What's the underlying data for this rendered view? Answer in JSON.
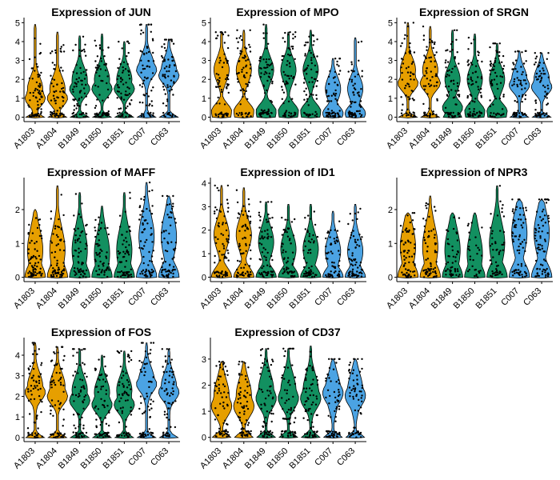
{
  "palette": {
    "A": "#E69F00",
    "B": "#129060",
    "C": "#4BA3E3"
  },
  "chart_data": [
    {
      "type": "violin",
      "title": "Expression of JUN",
      "categories": [
        "A1803",
        "A1804",
        "B1849",
        "B1850",
        "B1851",
        "C007",
        "C063"
      ],
      "yticks": [
        0,
        1,
        2,
        3,
        4,
        5
      ],
      "ylim": [
        -0.15,
        5.1
      ],
      "series": [
        {
          "max": 4.9,
          "medianish": 1.0,
          "bulk": 1.5,
          "n": 70
        },
        {
          "max": 4.5,
          "medianish": 1.0,
          "bulk": 1.5,
          "n": 70
        },
        {
          "max": 4.3,
          "medianish": 1.5,
          "bulk": 2.0,
          "n": 70
        },
        {
          "max": 4.4,
          "medianish": 1.5,
          "bulk": 2.0,
          "n": 70
        },
        {
          "max": 4.0,
          "medianish": 1.5,
          "bulk": 2.0,
          "n": 70
        },
        {
          "max": 4.9,
          "medianish": 2.5,
          "bulk": 2.7,
          "n": 70
        },
        {
          "max": 4.1,
          "medianish": 2.2,
          "bulk": 2.5,
          "n": 70
        }
      ]
    },
    {
      "type": "violin",
      "title": "Expression of MPO",
      "categories": [
        "A1803",
        "A1804",
        "B1849",
        "B1850",
        "B1851",
        "C007",
        "C063"
      ],
      "yticks": [
        0,
        1,
        2,
        3,
        4,
        5
      ],
      "ylim": [
        -0.15,
        5.1
      ],
      "series": [
        {
          "max": 4.5,
          "medianish": 0.3,
          "bulk": 2.5,
          "n": 70
        },
        {
          "max": 4.6,
          "medianish": 0.3,
          "bulk": 2.5,
          "n": 70
        },
        {
          "max": 4.9,
          "medianish": 0.3,
          "bulk": 2.5,
          "n": 70
        },
        {
          "max": 4.5,
          "medianish": 0.3,
          "bulk": 2.5,
          "n": 70
        },
        {
          "max": 4.6,
          "medianish": 0.3,
          "bulk": 2.5,
          "n": 70
        },
        {
          "max": 3.1,
          "medianish": 0.2,
          "bulk": 1.5,
          "n": 70
        },
        {
          "max": 4.2,
          "medianish": 0.2,
          "bulk": 1.5,
          "n": 70
        }
      ]
    },
    {
      "type": "violin",
      "title": "Expression of SRGN",
      "categories": [
        "A1803",
        "A1804",
        "B1849",
        "B1850",
        "B1851",
        "C007",
        "C063"
      ],
      "yticks": [
        0,
        1,
        2,
        3,
        4,
        5
      ],
      "ylim": [
        -0.15,
        5.1
      ],
      "series": [
        {
          "max": 5.0,
          "medianish": 1.8,
          "bulk": 2.5,
          "n": 70
        },
        {
          "max": 4.8,
          "medianish": 1.8,
          "bulk": 2.5,
          "n": 70
        },
        {
          "max": 4.6,
          "medianish": 0.5,
          "bulk": 2.0,
          "n": 70
        },
        {
          "max": 4.4,
          "medianish": 0.3,
          "bulk": 2.0,
          "n": 70
        },
        {
          "max": 3.9,
          "medianish": 0.3,
          "bulk": 2.0,
          "n": 70
        },
        {
          "max": 3.5,
          "medianish": 1.7,
          "bulk": 2.0,
          "n": 70
        },
        {
          "max": 3.4,
          "medianish": 1.6,
          "bulk": 2.0,
          "n": 70
        }
      ]
    },
    {
      "type": "violin",
      "title": "Expression of MAFF",
      "categories": [
        "A1803",
        "A1804",
        "B1849",
        "B1850",
        "B1851",
        "C007",
        "C063"
      ],
      "yticks": [
        0,
        1,
        2
      ],
      "ylim": [
        -0.08,
        2.85
      ],
      "series": [
        {
          "max": 2.0,
          "medianish": 0.0,
          "bulk": 0.8,
          "n": 70
        },
        {
          "max": 2.7,
          "medianish": 0.0,
          "bulk": 0.8,
          "n": 70
        },
        {
          "max": 2.5,
          "medianish": 0.0,
          "bulk": 0.8,
          "n": 60
        },
        {
          "max": 2.1,
          "medianish": 0.0,
          "bulk": 0.7,
          "n": 55
        },
        {
          "max": 2.5,
          "medianish": 0.0,
          "bulk": 0.8,
          "n": 60
        },
        {
          "max": 2.8,
          "medianish": 0.0,
          "bulk": 1.2,
          "n": 70
        },
        {
          "max": 2.4,
          "medianish": 0.0,
          "bulk": 1.2,
          "n": 70
        }
      ]
    },
    {
      "type": "violin",
      "title": "Expression of ID1",
      "categories": [
        "A1803",
        "A1804",
        "B1849",
        "B1850",
        "B1851",
        "C007",
        "C063"
      ],
      "yticks": [
        0,
        1,
        2,
        3,
        4
      ],
      "ylim": [
        -0.12,
        4.1
      ],
      "series": [
        {
          "max": 3.9,
          "medianish": 0.0,
          "bulk": 1.8,
          "n": 75
        },
        {
          "max": 3.8,
          "medianish": 0.0,
          "bulk": 1.8,
          "n": 75
        },
        {
          "max": 3.2,
          "medianish": 0.0,
          "bulk": 1.5,
          "n": 70
        },
        {
          "max": 3.1,
          "medianish": 0.0,
          "bulk": 1.2,
          "n": 60
        },
        {
          "max": 3.1,
          "medianish": 0.0,
          "bulk": 1.2,
          "n": 55
        },
        {
          "max": 2.8,
          "medianish": 0.0,
          "bulk": 1.1,
          "n": 60
        },
        {
          "max": 3.1,
          "medianish": 0.0,
          "bulk": 1.1,
          "n": 70
        }
      ]
    },
    {
      "type": "violin",
      "title": "Expression of NPR3",
      "categories": [
        "A1803",
        "A1804",
        "B1849",
        "B1850",
        "B1851",
        "C007",
        "C063"
      ],
      "yticks": [
        0,
        1,
        2
      ],
      "ylim": [
        -0.08,
        2.85
      ],
      "series": [
        {
          "max": 1.9,
          "medianish": 0.0,
          "bulk": 0.9,
          "n": 70
        },
        {
          "max": 2.4,
          "medianish": 0.0,
          "bulk": 0.9,
          "n": 70
        },
        {
          "max": 1.9,
          "medianish": 0.0,
          "bulk": 0.8,
          "n": 50
        },
        {
          "max": 1.9,
          "medianish": 0.0,
          "bulk": 0.7,
          "n": 30
        },
        {
          "max": 2.7,
          "medianish": 0.0,
          "bulk": 1.0,
          "n": 55
        },
        {
          "max": 2.3,
          "medianish": 0.0,
          "bulk": 1.3,
          "n": 75
        },
        {
          "max": 2.3,
          "medianish": 0.0,
          "bulk": 1.3,
          "n": 75
        }
      ]
    },
    {
      "type": "violin",
      "title": "Expression of FOS",
      "categories": [
        "A1803",
        "A1804",
        "B1849",
        "B1850",
        "B1851",
        "C007",
        "C063"
      ],
      "yticks": [
        0,
        1,
        2,
        3,
        4
      ],
      "ylim": [
        -0.12,
        4.7
      ],
      "series": [
        {
          "max": 4.6,
          "medianish": 2.2,
          "bulk": 2.5,
          "n": 70
        },
        {
          "max": 4.4,
          "medianish": 2.0,
          "bulk": 2.5,
          "n": 70
        },
        {
          "max": 4.3,
          "medianish": 1.8,
          "bulk": 2.3,
          "n": 70
        },
        {
          "max": 4.0,
          "medianish": 1.6,
          "bulk": 2.2,
          "n": 70
        },
        {
          "max": 4.2,
          "medianish": 1.6,
          "bulk": 2.3,
          "n": 70
        },
        {
          "max": 4.6,
          "medianish": 2.6,
          "bulk": 2.8,
          "n": 70
        },
        {
          "max": 4.3,
          "medianish": 2.2,
          "bulk": 2.5,
          "n": 70
        }
      ]
    },
    {
      "type": "violin",
      "title": "Expression of CD37",
      "categories": [
        "A1803",
        "A1804",
        "B1849",
        "B1850",
        "B1851",
        "C007",
        "C063"
      ],
      "yticks": [
        0,
        1,
        2,
        3
      ],
      "ylim": [
        -0.1,
        3.7
      ],
      "series": [
        {
          "max": 2.9,
          "medianish": 1.2,
          "bulk": 1.6,
          "n": 70
        },
        {
          "max": 2.9,
          "medianish": 1.2,
          "bulk": 1.6,
          "n": 70
        },
        {
          "max": 3.4,
          "medianish": 1.5,
          "bulk": 1.8,
          "n": 70
        },
        {
          "max": 3.4,
          "medianish": 1.5,
          "bulk": 1.8,
          "n": 70
        },
        {
          "max": 3.5,
          "medianish": 1.5,
          "bulk": 1.8,
          "n": 70
        },
        {
          "max": 3.0,
          "medianish": 1.7,
          "bulk": 1.8,
          "n": 70
        },
        {
          "max": 3.0,
          "medianish": 1.6,
          "bulk": 1.8,
          "n": 70
        }
      ]
    }
  ]
}
